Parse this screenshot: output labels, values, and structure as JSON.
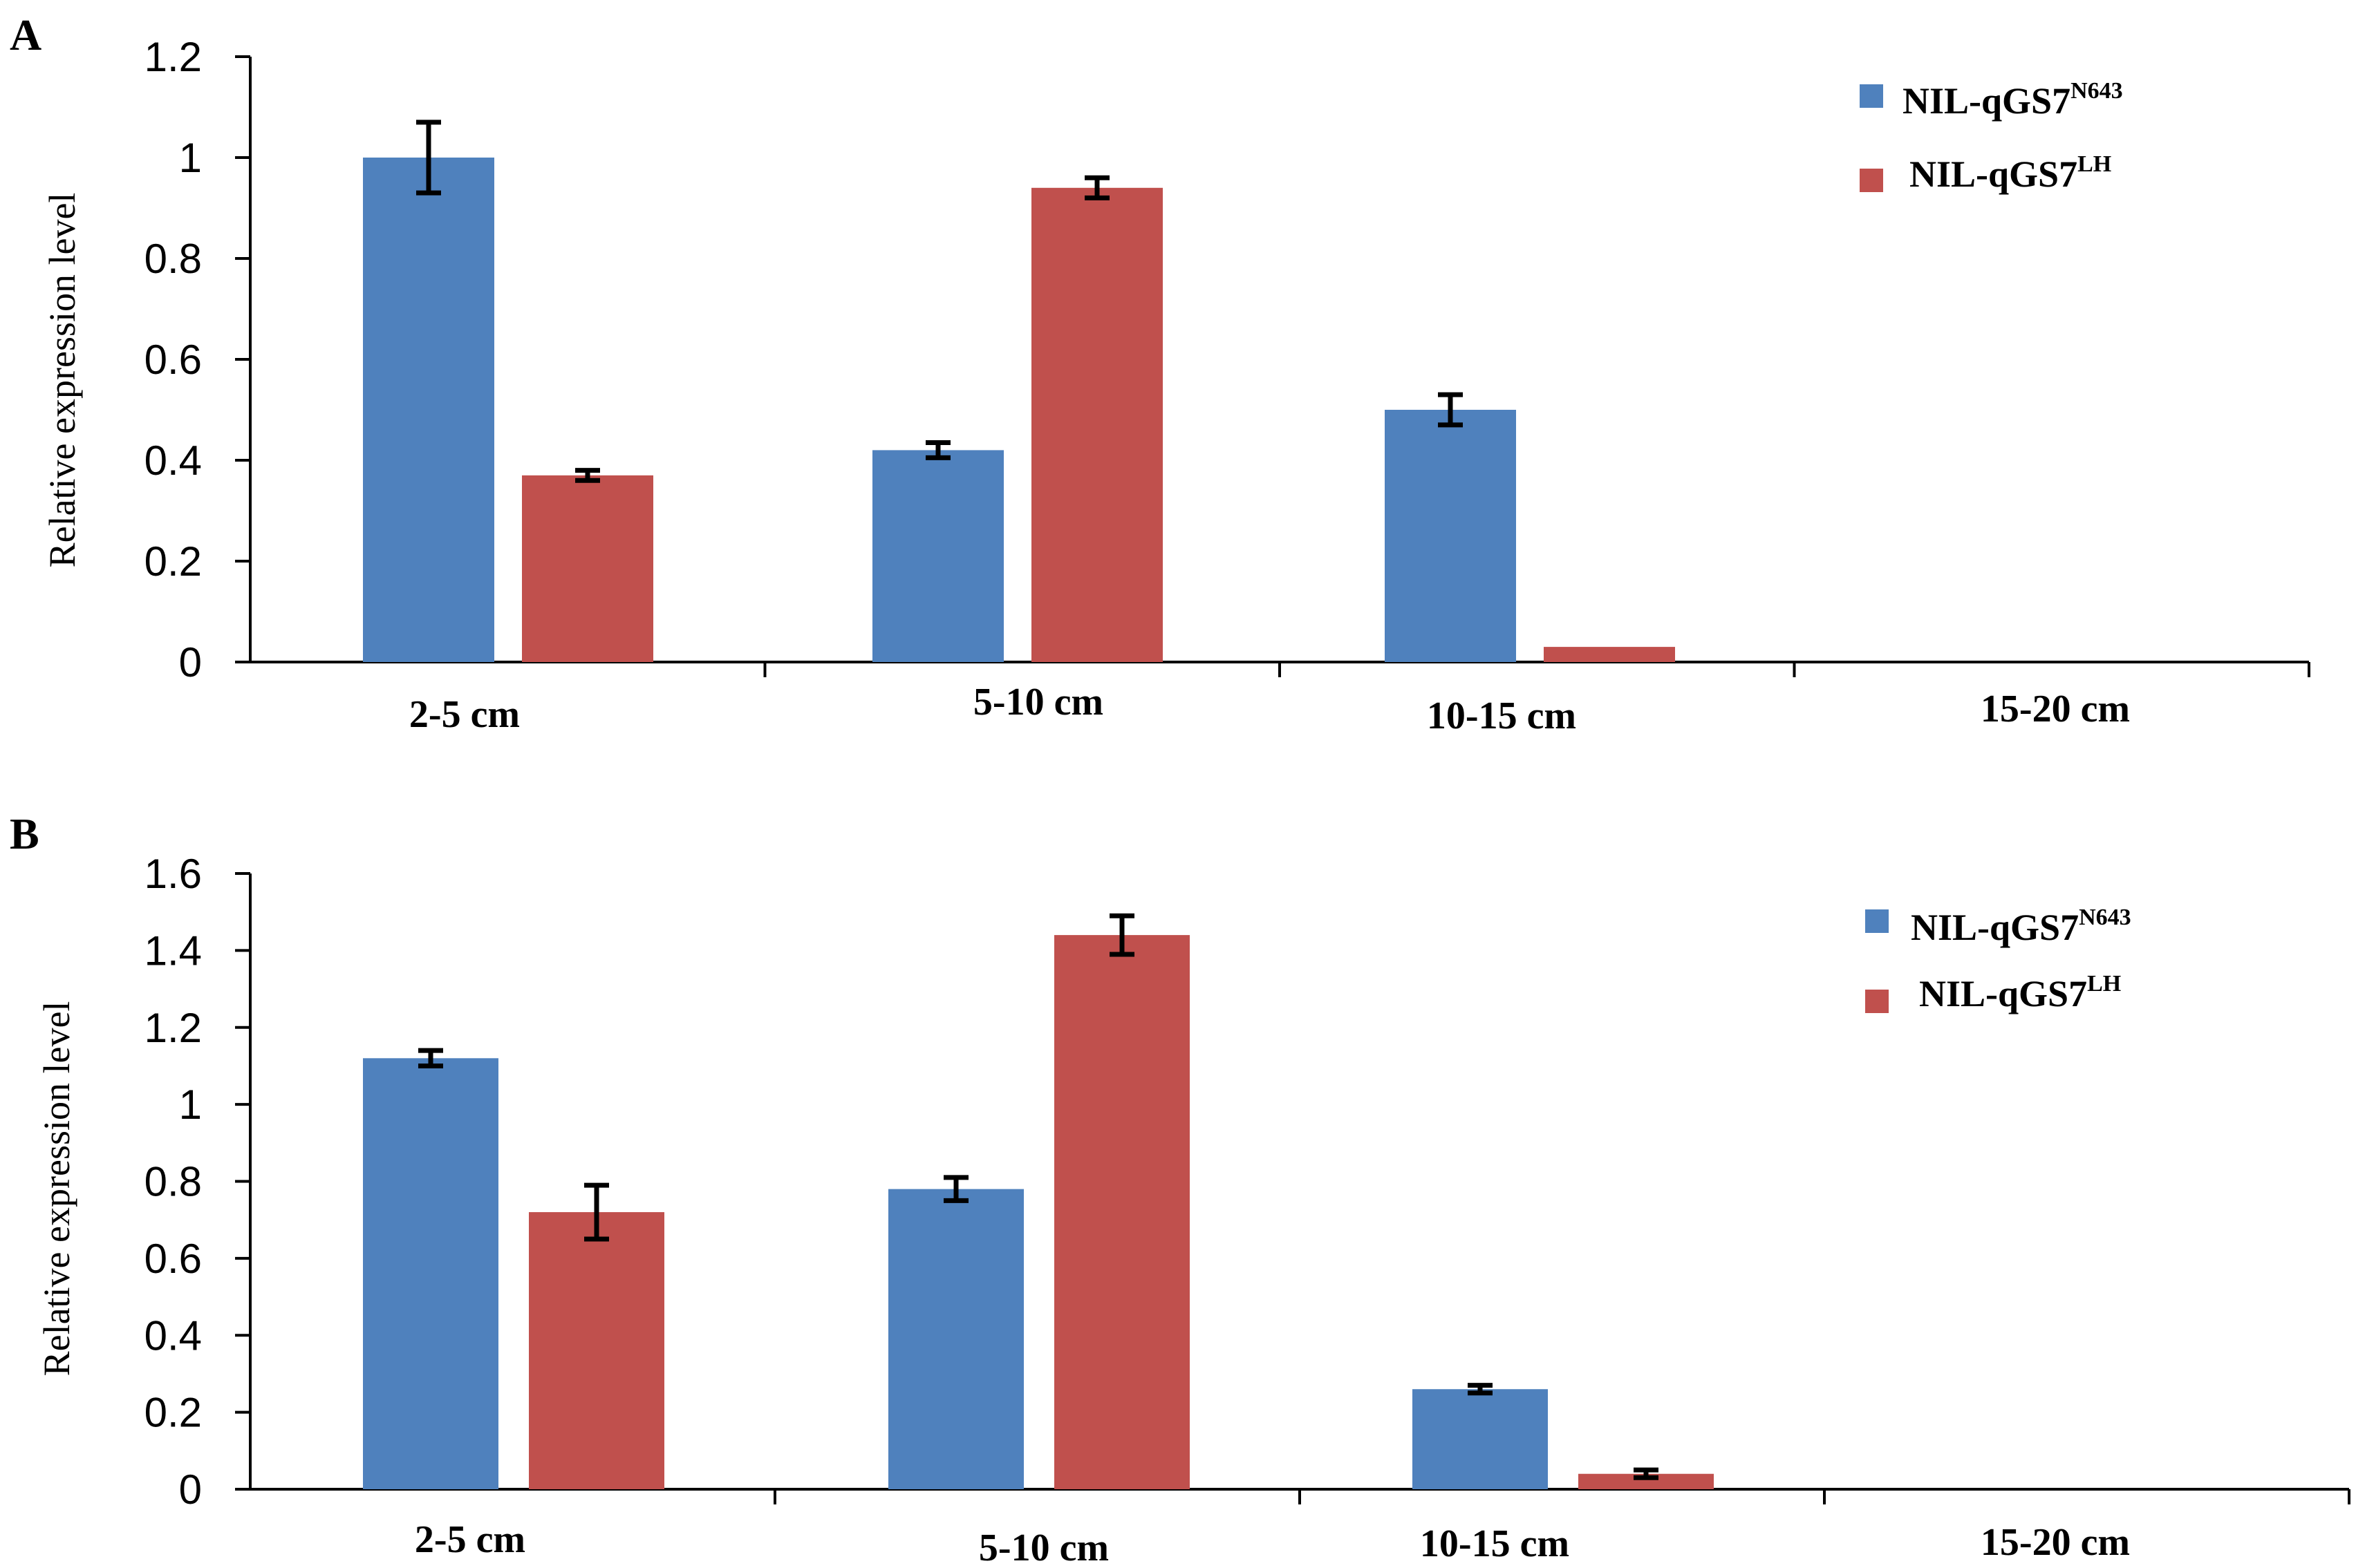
{
  "chart_data": [
    {
      "panel": "A",
      "type": "bar",
      "ylabel": "Relative expression level",
      "ylim": [
        0,
        1.2
      ],
      "yticks": [
        "0",
        "0.2",
        "0.4",
        "0.6",
        "0.8",
        "1",
        "1.2"
      ],
      "categories": [
        "2-5 cm",
        "5-10 cm",
        "10-15 cm",
        "15-20 cm"
      ],
      "series": [
        {
          "name": "NIL-qGS7",
          "sup": "N643",
          "color": "#4F81BD",
          "values": [
            1.0,
            0.42,
            0.5,
            0
          ],
          "errors": [
            0.07,
            0.015,
            0.03,
            0
          ]
        },
        {
          "name": "NIL-qGS7",
          "sup": "LH",
          "color": "#C0504D",
          "values": [
            0.37,
            0.94,
            0.03,
            0
          ],
          "errors": [
            0.01,
            0.02,
            0,
            0
          ]
        }
      ]
    },
    {
      "panel": "B",
      "type": "bar",
      "ylabel": "Relative expression level",
      "ylim": [
        0,
        1.6
      ],
      "yticks": [
        "0",
        "0.2",
        "0.4",
        "0.6",
        "0.8",
        "1",
        "1.2",
        "1.4",
        "1.6"
      ],
      "categories": [
        "2-5 cm",
        "5-10 cm",
        "10-15 cm",
        "15-20 cm"
      ],
      "series": [
        {
          "name": "NIL-qGS7",
          "sup": "N643",
          "color": "#4F81BD",
          "values": [
            1.12,
            0.78,
            0.26,
            0
          ],
          "errors": [
            0.02,
            0.03,
            0.01,
            0
          ]
        },
        {
          "name": "NIL-qGS7",
          "sup": "LH",
          "color": "#C0504D",
          "values": [
            0.72,
            1.44,
            0.04,
            0
          ],
          "errors": [
            0.07,
            0.05,
            0.01,
            0
          ]
        }
      ]
    }
  ]
}
